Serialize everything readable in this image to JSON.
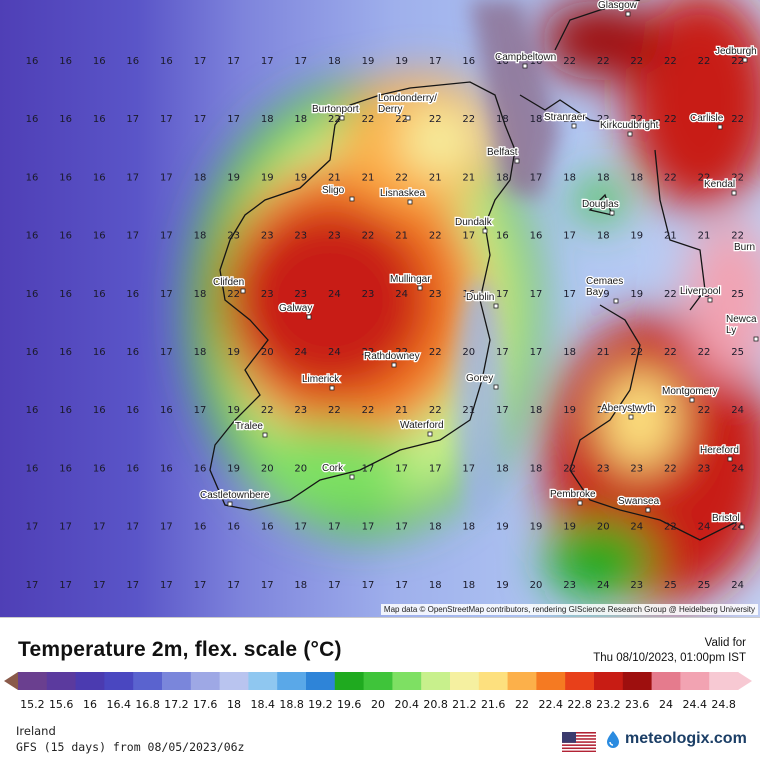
{
  "map": {
    "attribution": "Map data © OpenStreetMap contributors, rendering GIScience Research Group @ Heidelberg University",
    "grid_values": [
      [
        "16",
        "16",
        "16",
        "16",
        "16",
        "17",
        "17",
        "17",
        "17",
        "18",
        "19",
        "19",
        "17",
        "16",
        "16",
        "16",
        "22",
        "22",
        "22",
        "22",
        "22",
        "22"
      ],
      [
        "16",
        "16",
        "16",
        "17",
        "17",
        "17",
        "17",
        "18",
        "18",
        "22",
        "22",
        "22",
        "22",
        "22",
        "18",
        "18",
        "22",
        "22",
        "22",
        "22",
        "22",
        "22"
      ],
      [
        "16",
        "16",
        "16",
        "17",
        "17",
        "18",
        "19",
        "19",
        "19",
        "21",
        "21",
        "22",
        "21",
        "21",
        "18",
        "17",
        "18",
        "18",
        "18",
        "22",
        "22",
        "22"
      ],
      [
        "16",
        "16",
        "16",
        "17",
        "17",
        "18",
        "23",
        "23",
        "23",
        "23",
        "22",
        "21",
        "22",
        "17",
        "16",
        "16",
        "17",
        "18",
        "19",
        "21",
        "21",
        "22"
      ],
      [
        "16",
        "16",
        "16",
        "16",
        "17",
        "18",
        "22",
        "23",
        "23",
        "24",
        "23",
        "24",
        "23",
        "16",
        "17",
        "17",
        "17",
        "19",
        "19",
        "22",
        "25",
        "25"
      ],
      [
        "16",
        "16",
        "16",
        "16",
        "17",
        "18",
        "19",
        "20",
        "24",
        "24",
        "22",
        "22",
        "22",
        "20",
        "17",
        "17",
        "18",
        "21",
        "22",
        "22",
        "22",
        "25"
      ],
      [
        "16",
        "16",
        "16",
        "16",
        "16",
        "17",
        "19",
        "22",
        "23",
        "22",
        "22",
        "21",
        "22",
        "21",
        "17",
        "18",
        "19",
        "21",
        "22",
        "22",
        "22",
        "24"
      ],
      [
        "16",
        "16",
        "16",
        "16",
        "16",
        "16",
        "19",
        "20",
        "20",
        "19",
        "17",
        "17",
        "17",
        "17",
        "18",
        "18",
        "22",
        "23",
        "23",
        "22",
        "23",
        "24"
      ],
      [
        "17",
        "17",
        "17",
        "17",
        "17",
        "16",
        "16",
        "16",
        "17",
        "17",
        "17",
        "17",
        "18",
        "18",
        "19",
        "19",
        "19",
        "20",
        "24",
        "22",
        "24",
        "24"
      ],
      [
        "17",
        "17",
        "17",
        "17",
        "17",
        "17",
        "17",
        "17",
        "18",
        "17",
        "17",
        "17",
        "18",
        "18",
        "19",
        "20",
        "23",
        "24",
        "23",
        "25",
        "25",
        "24"
      ]
    ],
    "cities": [
      {
        "name": "Glasgow"
      },
      {
        "name": "Jedburgh"
      },
      {
        "name": "Campbeltown"
      },
      {
        "name": "Londonderry/\nDerry"
      },
      {
        "name": "Burtonport"
      },
      {
        "name": "Stranraer"
      },
      {
        "name": "Kirkcudbright"
      },
      {
        "name": "Carlisle"
      },
      {
        "name": "Belfast"
      },
      {
        "name": "Kendal"
      },
      {
        "name": "Sligo"
      },
      {
        "name": "Lisnaskea"
      },
      {
        "name": "Douglas"
      },
      {
        "name": "Dundalk"
      },
      {
        "name": "Burn"
      },
      {
        "name": "Mullingar"
      },
      {
        "name": "Cemaes\nBay"
      },
      {
        "name": "Liverpool"
      },
      {
        "name": "Clifden"
      },
      {
        "name": "Dublin"
      },
      {
        "name": "Galway"
      },
      {
        "name": "Newca\nLy"
      },
      {
        "name": "Rathdowney"
      },
      {
        "name": "Limerick"
      },
      {
        "name": "Gorey"
      },
      {
        "name": "Montgomery"
      },
      {
        "name": "Aberystwyth"
      },
      {
        "name": "Tralee"
      },
      {
        "name": "Waterford"
      },
      {
        "name": "Hereford"
      },
      {
        "name": "Cork"
      },
      {
        "name": "Castletownbere"
      },
      {
        "name": "Pembroke"
      },
      {
        "name": "Swansea"
      },
      {
        "name": "Bristol"
      }
    ]
  },
  "legend": {
    "title": "Temperature 2m, flex. scale (°C)",
    "valid_label": "Valid for",
    "valid_time": "Thu 08/10/2023, 01:00pm IST",
    "region": "Ireland",
    "model": "GFS (15 days) from 08/05/2023/06z",
    "brand": "meteologix.com",
    "ticks": [
      "15.2",
      "15.6",
      "16",
      "16.4",
      "16.8",
      "17.2",
      "17.6",
      "18",
      "18.4",
      "18.8",
      "19.2",
      "19.6",
      "20",
      "20.4",
      "20.8",
      "21.2",
      "21.6",
      "22",
      "22.4",
      "22.8",
      "23.2",
      "23.6",
      "24",
      "24.4",
      "24.8"
    ],
    "colors": [
      "#6a3f8f",
      "#5b3a9e",
      "#4b3bb0",
      "#4a47c0",
      "#5a63cf",
      "#7a86db",
      "#9ea8e5",
      "#b9c4ef",
      "#8fc7f0",
      "#5aa8e8",
      "#2e84d8",
      "#1faa1f",
      "#3fc43a",
      "#7ee063",
      "#c8f08c",
      "#f5f0a0",
      "#fde07e",
      "#fcb04a",
      "#f57a22",
      "#e8401a",
      "#c81c14",
      "#9e0f0e",
      "#e57b8d",
      "#f2a3b2",
      "#f7c9d3"
    ]
  }
}
